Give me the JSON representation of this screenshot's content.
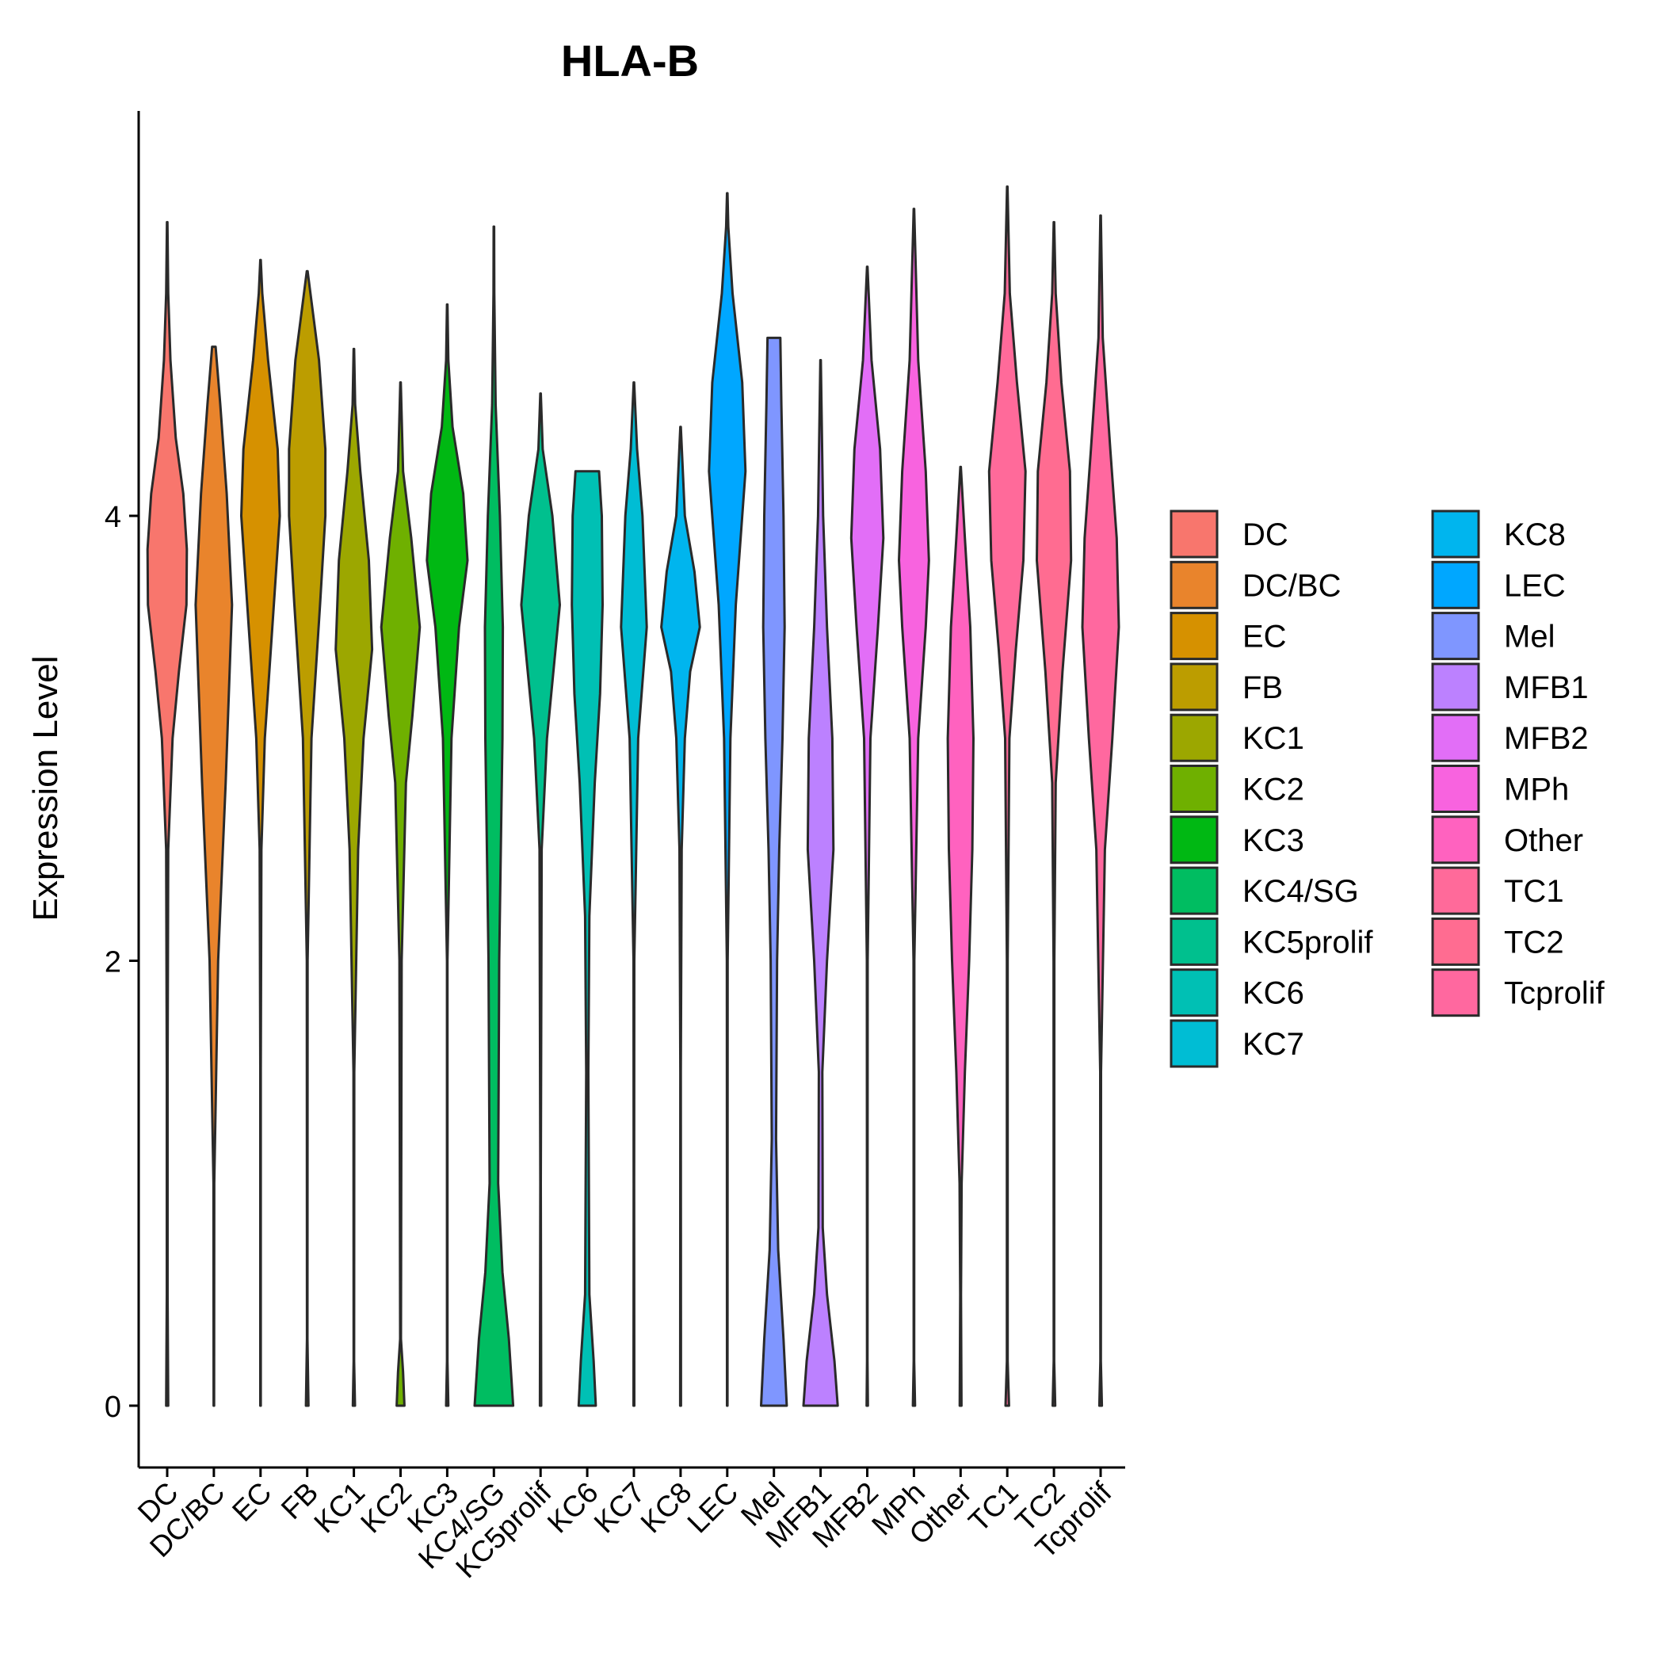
{
  "chart_data": {
    "type": "violin",
    "title": "HLA-B",
    "xlabel": "",
    "ylabel": "Expression Level",
    "ylim": [
      -0.28,
      5.8
    ],
    "yticks": [
      0,
      2,
      4
    ],
    "ytick_labels": [
      "0",
      "2",
      "4"
    ],
    "grid": false,
    "legend_position": "right",
    "legend_columns": 2,
    "categories": [
      "DC",
      "DC/BC",
      "EC",
      "FB",
      "KC1",
      "KC2",
      "KC3",
      "KC4/SG",
      "KC5prolif",
      "KC6",
      "KC7",
      "KC8",
      "LEC",
      "Mel",
      "MFB1",
      "MFB2",
      "MPh",
      "Other",
      "TC1",
      "TC2",
      "Tcprolif"
    ],
    "colors": [
      "#F8766D",
      "#E9842C",
      "#D69100",
      "#BC9D00",
      "#9CA700",
      "#6FB000",
      "#00B813",
      "#00BD61",
      "#00C08E",
      "#00C0B4",
      "#00BDD4",
      "#00B5EE",
      "#00A7FF",
      "#7F96FF",
      "#BC81FF",
      "#E26EF7",
      "#F863DF",
      "#FF62BF",
      "#FF6A9A",
      "#FF6C91",
      "#FF689F"
    ],
    "series": [
      {
        "name": "DC",
        "max": 5.32,
        "profile": [
          [
            0,
            0.05
          ],
          [
            0.5,
            0.02
          ],
          [
            1.5,
            0.02
          ],
          [
            2.5,
            0.05
          ],
          [
            3.0,
            0.25
          ],
          [
            3.3,
            0.55
          ],
          [
            3.6,
            0.9
          ],
          [
            3.85,
            0.92
          ],
          [
            4.1,
            0.75
          ],
          [
            4.35,
            0.4
          ],
          [
            4.7,
            0.15
          ],
          [
            5.0,
            0.05
          ],
          [
            5.32,
            0.01
          ]
        ]
      },
      {
        "name": "DC/BC",
        "max": 4.76,
        "profile": [
          [
            0,
            0.01
          ],
          [
            1.0,
            0.02
          ],
          [
            2.0,
            0.2
          ],
          [
            2.8,
            0.55
          ],
          [
            3.6,
            0.85
          ],
          [
            4.1,
            0.6
          ],
          [
            4.5,
            0.3
          ],
          [
            4.76,
            0.08
          ]
        ]
      },
      {
        "name": "EC",
        "max": 5.15,
        "profile": [
          [
            0,
            0.01
          ],
          [
            1.5,
            0.01
          ],
          [
            2.5,
            0.04
          ],
          [
            3.0,
            0.2
          ],
          [
            3.5,
            0.55
          ],
          [
            4.0,
            0.9
          ],
          [
            4.3,
            0.8
          ],
          [
            4.7,
            0.35
          ],
          [
            5.0,
            0.08
          ],
          [
            5.15,
            0.01
          ]
        ]
      },
      {
        "name": "FB",
        "max": 5.1,
        "profile": [
          [
            0,
            0.06
          ],
          [
            0.3,
            0.01
          ],
          [
            2.0,
            0.02
          ],
          [
            3.0,
            0.2
          ],
          [
            3.6,
            0.6
          ],
          [
            4.0,
            0.85
          ],
          [
            4.3,
            0.85
          ],
          [
            4.7,
            0.55
          ],
          [
            5.0,
            0.15
          ],
          [
            5.1,
            0.02
          ]
        ]
      },
      {
        "name": "KC1",
        "max": 4.75,
        "profile": [
          [
            0,
            0.05
          ],
          [
            0.2,
            0.01
          ],
          [
            1.5,
            0.02
          ],
          [
            2.5,
            0.2
          ],
          [
            3.0,
            0.45
          ],
          [
            3.4,
            0.85
          ],
          [
            3.8,
            0.7
          ],
          [
            4.2,
            0.3
          ],
          [
            4.5,
            0.06
          ],
          [
            4.75,
            0.01
          ]
        ]
      },
      {
        "name": "KC2",
        "max": 4.6,
        "profile": [
          [
            0,
            0.18
          ],
          [
            0.15,
            0.12
          ],
          [
            0.3,
            0.02
          ],
          [
            2.0,
            0.05
          ],
          [
            2.8,
            0.25
          ],
          [
            3.1,
            0.55
          ],
          [
            3.5,
            0.9
          ],
          [
            3.9,
            0.5
          ],
          [
            4.2,
            0.12
          ],
          [
            4.6,
            0.01
          ]
        ]
      },
      {
        "name": "KC3",
        "max": 4.95,
        "profile": [
          [
            0,
            0.05
          ],
          [
            0.2,
            0.01
          ],
          [
            2.0,
            0.01
          ],
          [
            3.0,
            0.2
          ],
          [
            3.5,
            0.55
          ],
          [
            3.8,
            0.95
          ],
          [
            4.1,
            0.75
          ],
          [
            4.4,
            0.25
          ],
          [
            4.7,
            0.05
          ],
          [
            4.95,
            0.01
          ]
        ]
      },
      {
        "name": "KC4/SG",
        "max": 5.3,
        "profile": [
          [
            0,
            0.9
          ],
          [
            0.3,
            0.7
          ],
          [
            0.6,
            0.4
          ],
          [
            1.0,
            0.2
          ],
          [
            2.0,
            0.25
          ],
          [
            3.0,
            0.4
          ],
          [
            3.5,
            0.42
          ],
          [
            4.0,
            0.28
          ],
          [
            4.5,
            0.08
          ],
          [
            5.0,
            0.02
          ],
          [
            5.3,
            0.01
          ]
        ]
      },
      {
        "name": "KC5prolif",
        "max": 4.55,
        "profile": [
          [
            0,
            0.03
          ],
          [
            1.0,
            0.01
          ],
          [
            2.5,
            0.05
          ],
          [
            3.0,
            0.3
          ],
          [
            3.3,
            0.6
          ],
          [
            3.6,
            0.9
          ],
          [
            4.0,
            0.55
          ],
          [
            4.3,
            0.1
          ],
          [
            4.55,
            0.01
          ]
        ]
      },
      {
        "name": "KC6",
        "max": 4.2,
        "profile": [
          [
            0,
            0.4
          ],
          [
            0.2,
            0.3
          ],
          [
            0.5,
            0.1
          ],
          [
            1.5,
            0.05
          ],
          [
            2.2,
            0.1
          ],
          [
            2.8,
            0.35
          ],
          [
            3.2,
            0.6
          ],
          [
            3.6,
            0.72
          ],
          [
            4.0,
            0.68
          ],
          [
            4.2,
            0.55
          ]
        ]
      },
      {
        "name": "KC7",
        "max": 4.6,
        "profile": [
          [
            0,
            0.02
          ],
          [
            1.0,
            0.01
          ],
          [
            2.0,
            0.02
          ],
          [
            3.0,
            0.2
          ],
          [
            3.5,
            0.6
          ],
          [
            4.0,
            0.4
          ],
          [
            4.3,
            0.15
          ],
          [
            4.6,
            0.01
          ]
        ]
      },
      {
        "name": "KC8",
        "max": 4.4,
        "profile": [
          [
            0,
            0.02
          ],
          [
            1.5,
            0.01
          ],
          [
            2.5,
            0.05
          ],
          [
            3.0,
            0.2
          ],
          [
            3.3,
            0.45
          ],
          [
            3.5,
            0.9
          ],
          [
            3.75,
            0.65
          ],
          [
            4.0,
            0.2
          ],
          [
            4.4,
            0.01
          ]
        ]
      },
      {
        "name": "LEC",
        "max": 5.45,
        "profile": [
          [
            0,
            0.01
          ],
          [
            2.0,
            0.02
          ],
          [
            3.0,
            0.15
          ],
          [
            3.6,
            0.4
          ],
          [
            4.2,
            0.85
          ],
          [
            4.6,
            0.7
          ],
          [
            5.0,
            0.25
          ],
          [
            5.3,
            0.05
          ],
          [
            5.45,
            0.01
          ]
        ]
      },
      {
        "name": "Mel",
        "max": 4.8,
        "profile": [
          [
            0,
            0.6
          ],
          [
            0.3,
            0.45
          ],
          [
            0.7,
            0.2
          ],
          [
            1.2,
            0.1
          ],
          [
            2.0,
            0.15
          ],
          [
            2.5,
            0.25
          ],
          [
            3.0,
            0.4
          ],
          [
            3.5,
            0.5
          ],
          [
            4.0,
            0.45
          ],
          [
            4.5,
            0.35
          ],
          [
            4.8,
            0.3
          ]
        ]
      },
      {
        "name": "MFB1",
        "max": 4.7,
        "profile": [
          [
            0,
            0.8
          ],
          [
            0.2,
            0.65
          ],
          [
            0.5,
            0.3
          ],
          [
            0.8,
            0.1
          ],
          [
            1.5,
            0.08
          ],
          [
            2.0,
            0.3
          ],
          [
            2.5,
            0.6
          ],
          [
            3.0,
            0.55
          ],
          [
            3.5,
            0.3
          ],
          [
            4.0,
            0.12
          ],
          [
            4.7,
            0.01
          ]
        ]
      },
      {
        "name": "MFB2",
        "max": 5.12,
        "profile": [
          [
            0,
            0.03
          ],
          [
            0.2,
            0.01
          ],
          [
            2.0,
            0.02
          ],
          [
            3.0,
            0.15
          ],
          [
            3.5,
            0.5
          ],
          [
            3.9,
            0.75
          ],
          [
            4.3,
            0.6
          ],
          [
            4.7,
            0.2
          ],
          [
            5.12,
            0.01
          ]
        ]
      },
      {
        "name": "MPh",
        "max": 5.38,
        "profile": [
          [
            0,
            0.05
          ],
          [
            0.2,
            0.01
          ],
          [
            2.0,
            0.02
          ],
          [
            3.0,
            0.2
          ],
          [
            3.5,
            0.55
          ],
          [
            3.8,
            0.7
          ],
          [
            4.2,
            0.55
          ],
          [
            4.7,
            0.2
          ],
          [
            5.38,
            0.01
          ]
        ]
      },
      {
        "name": "Other",
        "max": 4.22,
        "profile": [
          [
            0,
            0.04
          ],
          [
            0.5,
            0.02
          ],
          [
            1.0,
            0.05
          ],
          [
            1.5,
            0.2
          ],
          [
            2.0,
            0.4
          ],
          [
            2.5,
            0.55
          ],
          [
            3.0,
            0.6
          ],
          [
            3.5,
            0.45
          ],
          [
            3.9,
            0.2
          ],
          [
            4.22,
            0.01
          ]
        ]
      },
      {
        "name": "TC1",
        "max": 5.48,
        "profile": [
          [
            0,
            0.08
          ],
          [
            0.2,
            0.02
          ],
          [
            2.0,
            0.02
          ],
          [
            3.0,
            0.1
          ],
          [
            3.4,
            0.4
          ],
          [
            3.8,
            0.75
          ],
          [
            4.2,
            0.85
          ],
          [
            4.6,
            0.45
          ],
          [
            5.0,
            0.12
          ],
          [
            5.48,
            0.01
          ]
        ]
      },
      {
        "name": "TC2",
        "max": 5.32,
        "profile": [
          [
            0,
            0.06
          ],
          [
            0.2,
            0.01
          ],
          [
            2.0,
            0.02
          ],
          [
            2.8,
            0.08
          ],
          [
            3.3,
            0.4
          ],
          [
            3.8,
            0.8
          ],
          [
            4.2,
            0.75
          ],
          [
            4.6,
            0.35
          ],
          [
            5.0,
            0.08
          ],
          [
            5.32,
            0.01
          ]
        ]
      },
      {
        "name": "Tcprolif",
        "max": 5.35,
        "profile": [
          [
            0,
            0.06
          ],
          [
            0.2,
            0.01
          ],
          [
            1.5,
            0.02
          ],
          [
            2.5,
            0.2
          ],
          [
            3.0,
            0.55
          ],
          [
            3.5,
            0.85
          ],
          [
            3.9,
            0.75
          ],
          [
            4.3,
            0.45
          ],
          [
            4.8,
            0.1
          ],
          [
            5.35,
            0.01
          ]
        ]
      }
    ]
  }
}
